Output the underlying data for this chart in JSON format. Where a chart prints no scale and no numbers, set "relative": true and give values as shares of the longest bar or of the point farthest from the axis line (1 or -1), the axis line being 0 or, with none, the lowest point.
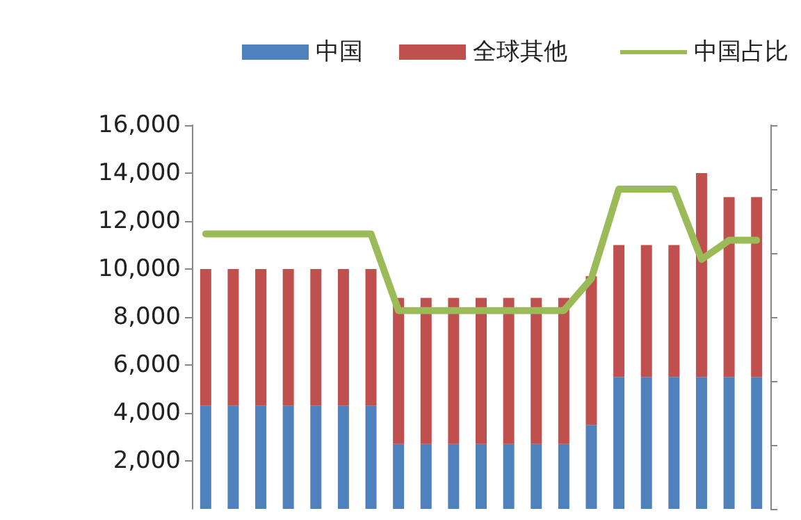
{
  "chart_data": [
    {
      "type": "bar",
      "stacked": true,
      "legend": "top left",
      "grid": false,
      "categories": [
        null,
        null,
        null,
        null,
        null,
        null,
        null,
        null,
        null,
        null,
        null,
        null,
        null,
        null,
        null,
        null,
        null,
        null,
        null,
        null,
        null
      ],
      "series": [
        {
          "name": "中国",
          "color": "#4f81bd",
          "values": [
            4300,
            4300,
            4300,
            4300,
            4300,
            4300,
            4300,
            2700,
            2700,
            2700,
            2700,
            2700,
            2700,
            2700,
            3500,
            5500,
            5500,
            5500,
            5500,
            5500,
            5500
          ]
        },
        {
          "name": "全球其他",
          "color": "#c0504d",
          "values": [
            5700,
            5700,
            5700,
            5700,
            5700,
            5700,
            5700,
            6100,
            6100,
            6100,
            6100,
            6100,
            6100,
            6100,
            6200,
            5500,
            5500,
            5500,
            8500,
            7500,
            7500
          ]
        }
      ],
      "ylim": [
        0,
        16000
      ],
      "yticks": [
        {
          "value": 2000,
          "label": "2,000"
        },
        {
          "value": 4000,
          "label": "4,000"
        },
        {
          "value": 6000,
          "label": "6,000"
        },
        {
          "value": 8000,
          "label": "8,000"
        },
        {
          "value": 10000,
          "label": "10,000"
        },
        {
          "value": 12000,
          "label": "12,000"
        },
        {
          "value": 14000,
          "label": "14,000"
        },
        {
          "value": 16000,
          "label": "16,000"
        }
      ]
    },
    {
      "type": "line",
      "relative": true,
      "legend": "top right",
      "marker": "none",
      "categories": [
        null,
        null,
        null,
        null,
        null,
        null,
        null,
        null,
        null,
        null,
        null,
        null,
        null,
        null,
        null,
        null,
        null,
        null,
        null,
        null,
        null
      ],
      "series": [
        {
          "name": "中国占比",
          "color": "#9bbb59",
          "values": [
            0.86,
            0.86,
            0.86,
            0.86,
            0.86,
            0.86,
            0.86,
            0.62,
            0.62,
            0.62,
            0.62,
            0.62,
            0.62,
            0.62,
            0.72,
            1,
            1,
            1,
            0.78,
            0.84,
            0.84
          ]
        }
      ]
    }
  ]
}
